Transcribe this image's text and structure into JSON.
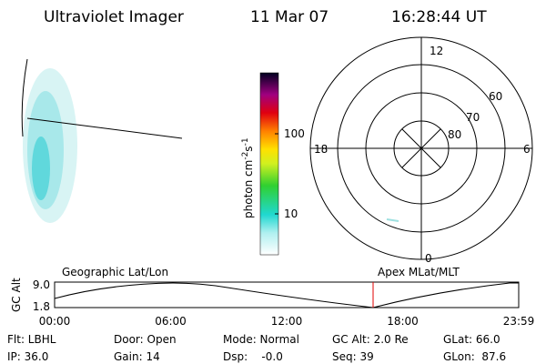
{
  "header": {
    "instrument": "Ultraviolet Imager",
    "date": "11 Mar 07",
    "time": "16:28:44 UT"
  },
  "colorbar": {
    "label": "photon cm",
    "exp1": "-2",
    "unit2": "s",
    "exp2": "-1",
    "ticks": [
      "100",
      "10"
    ]
  },
  "polar": {
    "labels": [
      "12",
      "60",
      "70",
      "80",
      "18",
      "6",
      "0"
    ]
  },
  "altitude_plot": {
    "y_label": "GC Alt",
    "left_title": "Geographic Lat/Lon",
    "right_title": "Apex MLat/MLT",
    "yticks": [
      "9.0",
      "1.8"
    ],
    "xticks": [
      "00:00",
      "06:00",
      "12:00",
      "18:00",
      "23:59"
    ]
  },
  "info": {
    "rows": [
      [
        "Flt: LBHL",
        "Door: Open",
        "Mode: Normal",
        "GC Alt: 2.0 Re",
        "GLat: 66.0"
      ],
      [
        "IP: 36.0",
        "Gain: 14",
        "Dsp:    -0.0",
        "Seq: 39",
        "GLon:  87.6"
      ]
    ]
  }
}
